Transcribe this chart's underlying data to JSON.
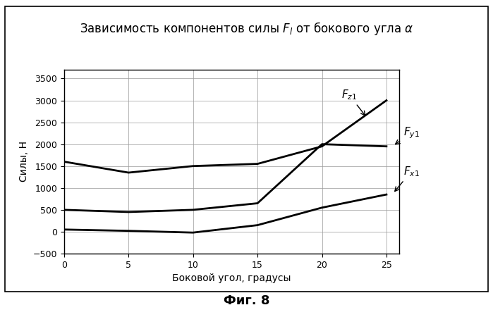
{
  "title": "Зависимость компонентов силы $F_l$ от бокового угла $\\alpha$",
  "xlabel": "Боковой угол, градусы",
  "ylabel": "Силы, Н",
  "figcaption": "Фиг. 8",
  "x_Fz": [
    0,
    5,
    10,
    15,
    20,
    25
  ],
  "y_Fz": [
    1600,
    1350,
    1500,
    1550,
    1950,
    3000
  ],
  "x_Fy": [
    0,
    5,
    10,
    15,
    20,
    25
  ],
  "y_Fy": [
    500,
    450,
    500,
    650,
    2000,
    1950
  ],
  "x_Fx": [
    0,
    5,
    10,
    15,
    20,
    25
  ],
  "y_Fx": [
    50,
    20,
    -20,
    150,
    550,
    850
  ],
  "xlim": [
    0,
    26
  ],
  "ylim": [
    -500,
    3700
  ],
  "yticks": [
    -500,
    0,
    500,
    1000,
    1500,
    2000,
    2500,
    3000,
    3500
  ],
  "xticks": [
    0,
    5,
    10,
    15,
    20,
    25
  ],
  "line_color": "#000000",
  "bg_color": "#ffffff",
  "title_fontsize": 12,
  "label_fontsize": 10,
  "tick_fontsize": 9,
  "caption_fontsize": 13,
  "annotation_fontsize": 11
}
